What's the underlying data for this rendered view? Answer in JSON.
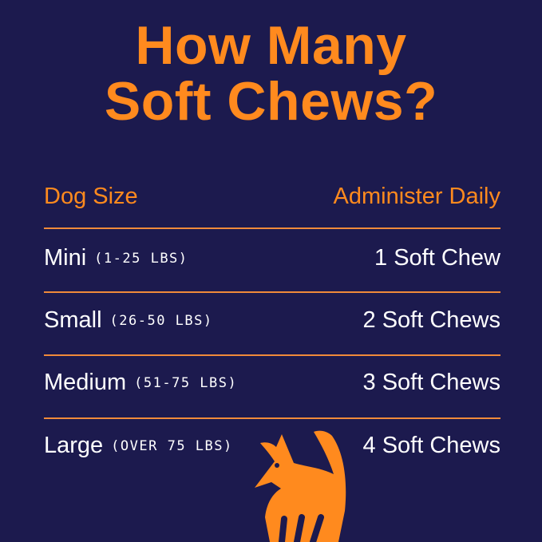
{
  "title_line1": "How Many",
  "title_line2": "Soft Chews?",
  "header": {
    "left": "Dog Size",
    "right": "Administer Daily"
  },
  "rows": [
    {
      "size": "Mini",
      "range": "(1-25 LBS)",
      "amount": "1 Soft Chew"
    },
    {
      "size": "Small",
      "range": "(26-50 LBS)",
      "amount": "2 Soft Chews"
    },
    {
      "size": "Medium",
      "range": "(51-75 LBS)",
      "amount": "3 Soft Chews"
    },
    {
      "size": "Large",
      "range": "(OVER 75 LBS)",
      "amount": "4 Soft Chews"
    }
  ],
  "colors": {
    "background": "#1c1a4e",
    "accent": "#ff8a1e",
    "text": "#ffffff"
  },
  "icon": "fox-dog-logo-icon"
}
